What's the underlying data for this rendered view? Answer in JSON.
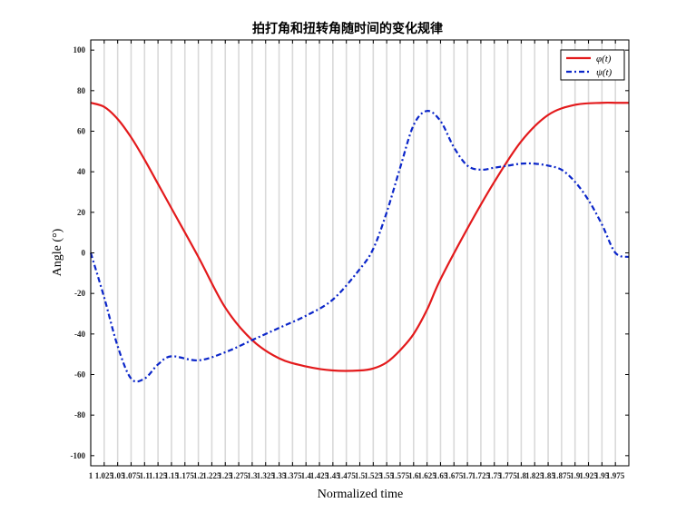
{
  "chart_data": {
    "type": "line",
    "title": "拍打角和扭转角随时间的变化规律",
    "xlabel": "Normalized time",
    "ylabel": "Angle (°)",
    "xlim": [
      1.0,
      2.0
    ],
    "ylim": [
      -105,
      105
    ],
    "yticks": [
      -100,
      -80,
      -60,
      -40,
      -20,
      0,
      20,
      40,
      60,
      80,
      100
    ],
    "xticks": [
      1,
      1.025,
      1.05,
      1.075,
      1.1,
      1.125,
      1.15,
      1.175,
      1.2,
      1.225,
      1.25,
      1.275,
      1.3,
      1.325,
      1.35,
      1.375,
      1.4,
      1.425,
      1.45,
      1.475,
      1.5,
      1.525,
      1.55,
      1.575,
      1.6,
      1.625,
      1.65,
      1.675,
      1.7,
      1.725,
      1.75,
      1.775,
      1.8,
      1.825,
      1.85,
      1.875,
      1.9,
      1.925,
      1.95,
      1.975
    ],
    "xtick_labels": [
      "1",
      "1.025",
      "1.05",
      "1.075",
      "1.1",
      "1.125",
      "1.15",
      "1.175",
      "1.2",
      "1.225",
      "1.25",
      "1.275",
      "1.3",
      "1.325",
      "1.35",
      "1.375",
      "1.4",
      "1.425",
      "1.45",
      "1.475",
      "1.5",
      "1.525",
      "1.55",
      "1.575",
      "1.6",
      "1.625",
      "1.65",
      "1.675",
      "1.7",
      "1.725",
      "1.75",
      "1.775",
      "1.8",
      "1.825",
      "1.85",
      "1.875",
      "1.9",
      "1.925",
      "1.95",
      "1.975"
    ],
    "grid": "vertical",
    "legend_position": "top-right",
    "series": [
      {
        "name": "φ(t)",
        "color": "#e31a1c",
        "style": "solid",
        "x": [
          1.0,
          1.025,
          1.05,
          1.075,
          1.1,
          1.125,
          1.15,
          1.2,
          1.25,
          1.3,
          1.35,
          1.4,
          1.45,
          1.5,
          1.525,
          1.55,
          1.575,
          1.6,
          1.625,
          1.65,
          1.7,
          1.75,
          1.8,
          1.85,
          1.9,
          1.95,
          1.975,
          2.0
        ],
        "y": [
          74,
          72,
          66,
          57,
          46,
          34,
          22,
          -2,
          -27,
          -43,
          -52,
          -56,
          -58,
          -58,
          -57,
          -54,
          -48,
          -40,
          -28,
          -13,
          12,
          35,
          55,
          68,
          73,
          74,
          74,
          74
        ]
      },
      {
        "name": "ψ(t)",
        "color": "#0b26c9",
        "style": "dash-dot",
        "x": [
          1.0,
          1.025,
          1.05,
          1.075,
          1.1,
          1.125,
          1.15,
          1.2,
          1.25,
          1.3,
          1.35,
          1.4,
          1.45,
          1.5,
          1.525,
          1.55,
          1.575,
          1.6,
          1.625,
          1.65,
          1.675,
          1.7,
          1.725,
          1.75,
          1.775,
          1.8,
          1.825,
          1.85,
          1.875,
          1.9,
          1.925,
          1.95,
          1.975,
          2.0
        ],
        "y": [
          0,
          -22,
          -46,
          -62,
          -62,
          -55,
          -51,
          -53,
          -49,
          -43,
          -37,
          -31,
          -23,
          -8,
          2,
          20,
          42,
          63,
          70,
          65,
          52,
          43,
          41,
          42,
          43,
          44,
          44,
          43,
          41,
          35,
          26,
          14,
          0,
          -2
        ]
      }
    ]
  }
}
